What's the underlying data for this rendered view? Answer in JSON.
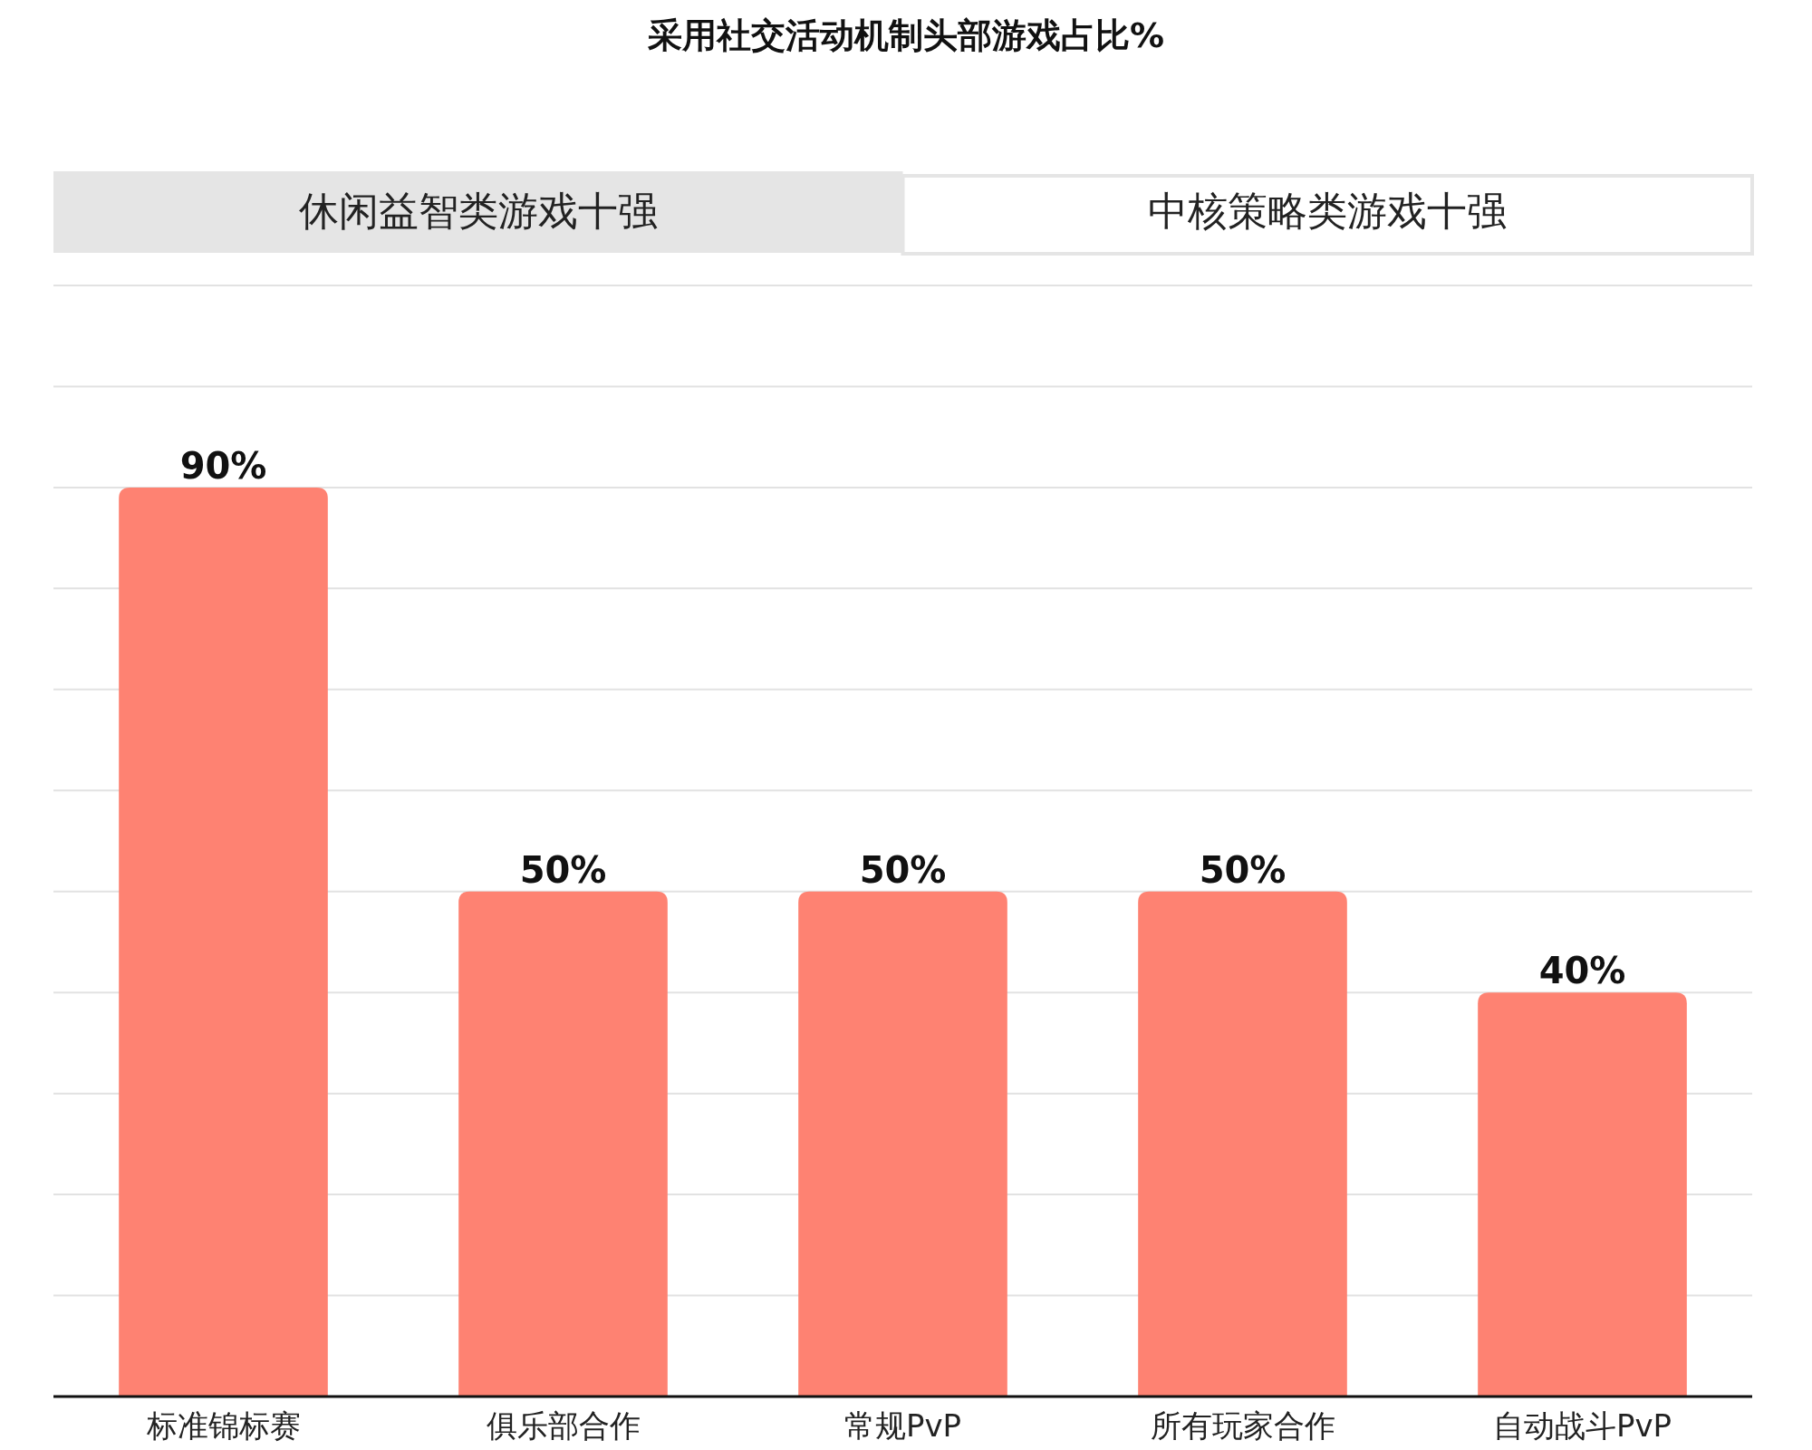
{
  "chart_data": {
    "type": "bar",
    "title": "采用社交活动机制头部游戏占比%",
    "annotations": [
      "休闲益智类游戏十强",
      "中核策略类游戏十强"
    ],
    "categories": [
      "标准锦标赛",
      "俱乐部合作",
      "常规PvP",
      "所有玩家合作",
      "自动战斗PvP"
    ],
    "values": [
      90,
      50,
      50,
      50,
      40
    ],
    "value_labels": [
      "90%",
      "50%",
      "50%",
      "50%",
      "40%"
    ],
    "color": "#fe8272",
    "ylim": [
      0,
      110
    ],
    "yticks": [
      {
        "value": 0,
        "label": null
      },
      {
        "value": 10,
        "label": null
      },
      {
        "value": 20,
        "label": null
      },
      {
        "value": 30,
        "label": null
      },
      {
        "value": 40,
        "label": null
      },
      {
        "value": 50,
        "label": null
      },
      {
        "value": 60,
        "label": null
      },
      {
        "value": 70,
        "label": null
      },
      {
        "value": 80,
        "label": null
      },
      {
        "value": 90,
        "label": null
      },
      {
        "value": 100,
        "label": null
      },
      {
        "value": 110,
        "label": null
      }
    ],
    "grid": "y",
    "tick_labels": "x"
  }
}
